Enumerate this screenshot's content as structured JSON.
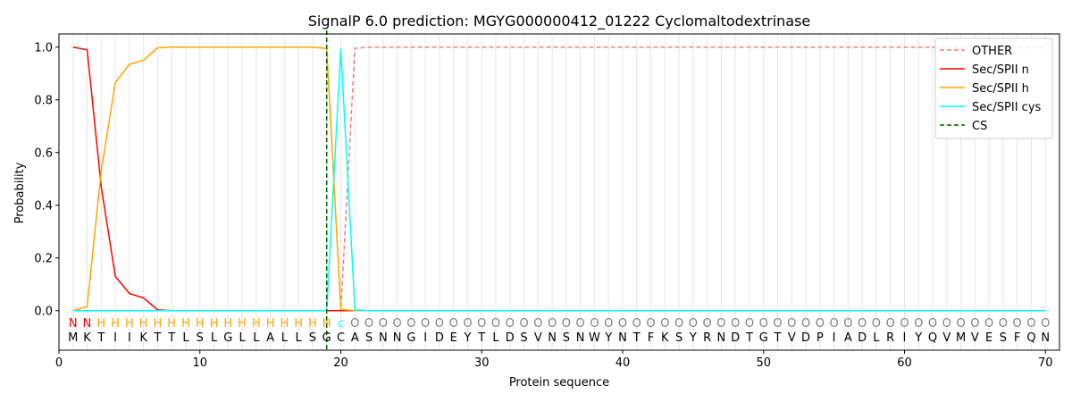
{
  "chart_data": {
    "type": "line",
    "title": "SignalP 6.0 prediction: MGYG000000412_01222 Cyclomaltodextrinase",
    "xlabel": "Protein sequence",
    "ylabel": "Probability",
    "xlim": [
      0,
      71
    ],
    "ylim": [
      -0.15,
      1.05
    ],
    "xticks": [
      0,
      10,
      20,
      30,
      40,
      50,
      60,
      70
    ],
    "yticks": [
      0.0,
      0.2,
      0.4,
      0.6,
      0.8,
      1.0
    ],
    "ytick_labels": [
      "0.0",
      "0.2",
      "0.4",
      "0.6",
      "0.8",
      "1.0"
    ],
    "legend_position": "top-right",
    "sequence": [
      "M",
      "K",
      "T",
      "I",
      "I",
      "K",
      "T",
      "T",
      "L",
      "S",
      "L",
      "G",
      "L",
      "L",
      "A",
      "L",
      "L",
      "S",
      "G",
      "C",
      "A",
      "S",
      "N",
      "N",
      "G",
      "I",
      "D",
      "E",
      "Y",
      "T",
      "L",
      "D",
      "S",
      "V",
      "N",
      "S",
      "N",
      "W",
      "Y",
      "N",
      "T",
      "F",
      "K",
      "S",
      "Y",
      "R",
      "N",
      "D",
      "T",
      "G",
      "T",
      "V",
      "D",
      "P",
      "I",
      "A",
      "D",
      "L",
      "R",
      "I",
      "Y",
      "Q",
      "V",
      "M",
      "V",
      "E",
      "S",
      "F",
      "Q",
      "N"
    ],
    "region_labels": [
      "N",
      "N",
      "H",
      "H",
      "H",
      "H",
      "H",
      "H",
      "H",
      "H",
      "H",
      "H",
      "H",
      "H",
      "H",
      "H",
      "H",
      "H",
      "H",
      "c",
      "O",
      "O",
      "O",
      "O",
      "O",
      "O",
      "O",
      "O",
      "O",
      "O",
      "O",
      "O",
      "O",
      "O",
      "O",
      "O",
      "O",
      "O",
      "O",
      "O",
      "O",
      "O",
      "O",
      "O",
      "O",
      "O",
      "O",
      "O",
      "O",
      "O",
      "O",
      "O",
      "O",
      "O",
      "O",
      "O",
      "O",
      "O",
      "O",
      "O",
      "O",
      "O",
      "O",
      "O",
      "O",
      "O",
      "O",
      "O",
      "O",
      "O"
    ],
    "region_colors": {
      "N": "#ff0000",
      "H": "#ffa500",
      "c": "#00ffff",
      "O": "#808080"
    },
    "series": [
      {
        "name": "OTHER",
        "color": "#f08080",
        "style": "dashed",
        "values": [
          0,
          0,
          0,
          0,
          0,
          0,
          0,
          0,
          0,
          0,
          0,
          0,
          0,
          0,
          0,
          0,
          0,
          0,
          0,
          0,
          0.995,
          1,
          1,
          1,
          1,
          1,
          1,
          1,
          1,
          1,
          1,
          1,
          1,
          1,
          1,
          1,
          1,
          1,
          1,
          1,
          1,
          1,
          1,
          1,
          1,
          1,
          1,
          1,
          1,
          1,
          1,
          1,
          1,
          1,
          1,
          1,
          1,
          1,
          1,
          1,
          1,
          1,
          1,
          1,
          1,
          1,
          1,
          1,
          1,
          1
        ]
      },
      {
        "name": "Sec/SPII n",
        "color": "#ff0000",
        "style": "solid",
        "values": [
          1.0,
          0.99,
          0.47,
          0.13,
          0.065,
          0.048,
          0.003,
          0,
          0,
          0,
          0,
          0,
          0,
          0,
          0,
          0,
          0,
          0,
          0,
          0,
          0,
          0,
          0,
          0,
          0,
          0,
          0,
          0,
          0,
          0,
          0,
          0,
          0,
          0,
          0,
          0,
          0,
          0,
          0,
          0,
          0,
          0,
          0,
          0,
          0,
          0,
          0,
          0,
          0,
          0,
          0,
          0,
          0,
          0,
          0,
          0,
          0,
          0,
          0,
          0,
          0,
          0,
          0,
          0,
          0,
          0,
          0,
          0,
          0,
          0
        ]
      },
      {
        "name": "Sec/SPII h",
        "color": "#ffa500",
        "style": "solid",
        "values": [
          0.0,
          0.015,
          0.53,
          0.865,
          0.935,
          0.95,
          0.997,
          1.0,
          1.0,
          1.0,
          1.0,
          1.0,
          1.0,
          1.0,
          1.0,
          1.0,
          1.0,
          1.0,
          0.995,
          0.005,
          0,
          0,
          0,
          0,
          0,
          0,
          0,
          0,
          0,
          0,
          0,
          0,
          0,
          0,
          0,
          0,
          0,
          0,
          0,
          0,
          0,
          0,
          0,
          0,
          0,
          0,
          0,
          0,
          0,
          0,
          0,
          0,
          0,
          0,
          0,
          0,
          0,
          0,
          0,
          0,
          0,
          0,
          0,
          0,
          0,
          0,
          0,
          0,
          0,
          0
        ]
      },
      {
        "name": "Sec/SPII cys",
        "color": "#00ffff",
        "style": "solid",
        "values": [
          0,
          0,
          0,
          0,
          0,
          0,
          0,
          0,
          0,
          0,
          0,
          0,
          0,
          0,
          0,
          0,
          0,
          0,
          0,
          0.995,
          0.003,
          0,
          0,
          0,
          0,
          0,
          0,
          0,
          0,
          0,
          0,
          0,
          0,
          0,
          0,
          0,
          0,
          0,
          0,
          0,
          0,
          0,
          0,
          0,
          0,
          0,
          0,
          0,
          0,
          0,
          0,
          0,
          0,
          0,
          0,
          0,
          0,
          0,
          0,
          0,
          0,
          0,
          0,
          0,
          0,
          0,
          0,
          0,
          0,
          0
        ]
      }
    ],
    "cs": {
      "name": "CS",
      "x": 19,
      "color": "#006400",
      "style": "dashed"
    }
  }
}
